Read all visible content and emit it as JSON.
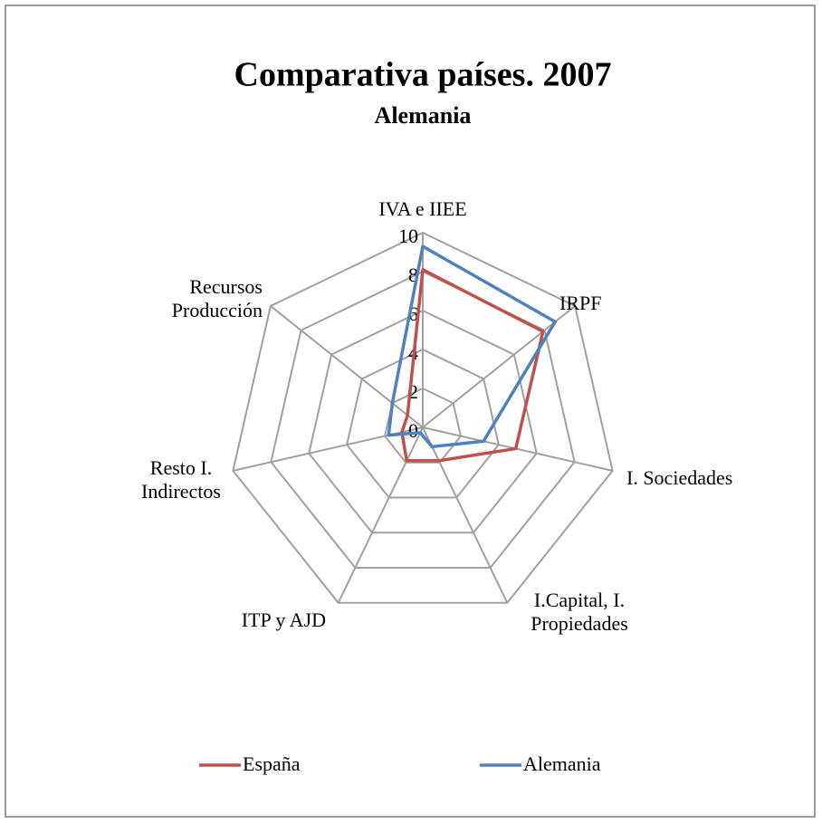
{
  "chart_data": {
    "type": "radar",
    "title": "Comparativa países. 2007",
    "subtitle": "Alemania",
    "categories": [
      "IVA e IIEE",
      "IRPF",
      "I. Sociedades",
      "I.Capital, I. Propiedades",
      "ITP y AJD",
      "Resto I. Indirectos",
      "Recursos Producción"
    ],
    "series": [
      {
        "name": "España",
        "color": "#c0504d",
        "values": [
          8.1,
          7.9,
          4.9,
          1.9,
          1.9,
          1.1,
          1.0
        ]
      },
      {
        "name": "Alemania",
        "color": "#4f81bd",
        "values": [
          9.3,
          8.7,
          3.2,
          1.1,
          0.3,
          1.8,
          2.0
        ]
      }
    ],
    "ylim": [
      0,
      10
    ],
    "yticks": [
      0,
      2,
      4,
      6,
      8,
      10
    ],
    "grid": true,
    "legend": "bottom"
  }
}
